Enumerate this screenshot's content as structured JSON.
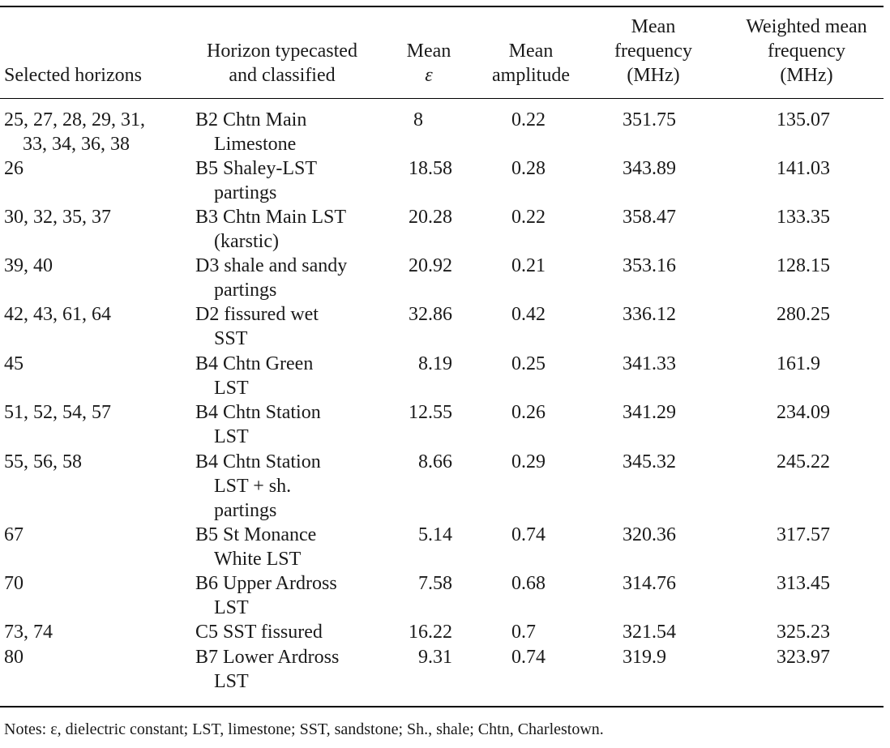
{
  "headers": {
    "selected": [
      "Selected horizons"
    ],
    "horizon": [
      "Horizon typecasted",
      "and classified"
    ],
    "eps": [
      "Mean",
      "ε"
    ],
    "amplitude": [
      "Mean",
      "amplitude"
    ],
    "mean_freq": [
      "Mean",
      "frequency",
      "(MHz)"
    ],
    "weighted_freq": [
      "Weighted mean",
      "frequency",
      "(MHz)"
    ]
  },
  "rows": [
    {
      "selected": [
        "25, 27, 28, 29, 31,",
        "33, 34, 36, 38"
      ],
      "horizon": [
        "B2 Chtn Main",
        "Limestone"
      ],
      "eps": "8",
      "amplitude": "0.22",
      "mean_freq": "351.75",
      "weighted_freq": "135.07"
    },
    {
      "selected": [
        "26"
      ],
      "horizon": [
        "B5 Shaley-LST",
        "partings"
      ],
      "eps": "18.58",
      "amplitude": "0.28",
      "mean_freq": "343.89",
      "weighted_freq": "141.03"
    },
    {
      "selected": [
        "30, 32, 35, 37"
      ],
      "horizon": [
        "B3 Chtn Main LST",
        "(karstic)"
      ],
      "eps": "20.28",
      "amplitude": "0.22",
      "mean_freq": "358.47",
      "weighted_freq": "133.35"
    },
    {
      "selected": [
        "39, 40"
      ],
      "horizon": [
        "D3 shale and sandy",
        "partings"
      ],
      "eps": "20.92",
      "amplitude": "0.21",
      "mean_freq": "353.16",
      "weighted_freq": "128.15"
    },
    {
      "selected": [
        "42, 43, 61, 64"
      ],
      "horizon": [
        "D2 fissured wet",
        "SST"
      ],
      "eps": "32.86",
      "amplitude": "0.42",
      "mean_freq": "336.12",
      "weighted_freq": "280.25"
    },
    {
      "selected": [
        "45"
      ],
      "horizon": [
        "B4 Chtn Green",
        "LST"
      ],
      "eps": "8.19",
      "amplitude": "0.25",
      "mean_freq": "341.33",
      "weighted_freq": "161.9"
    },
    {
      "selected": [
        "51, 52, 54, 57"
      ],
      "horizon": [
        "B4 Chtn Station",
        "LST"
      ],
      "eps": "12.55",
      "amplitude": "0.26",
      "mean_freq": "341.29",
      "weighted_freq": "234.09"
    },
    {
      "selected": [
        "55, 56, 58"
      ],
      "horizon": [
        "B4 Chtn Station",
        "LST + sh.",
        "partings"
      ],
      "eps": "8.66",
      "amplitude": "0.29",
      "mean_freq": "345.32",
      "weighted_freq": "245.22"
    },
    {
      "selected": [
        "67"
      ],
      "horizon": [
        "B5 St Monance",
        "White LST"
      ],
      "eps": "5.14",
      "amplitude": "0.74",
      "mean_freq": "320.36",
      "weighted_freq": "317.57"
    },
    {
      "selected": [
        "70"
      ],
      "horizon": [
        "B6 Upper Ardross",
        "LST"
      ],
      "eps": "7.58",
      "amplitude": "0.68",
      "mean_freq": "314.76",
      "weighted_freq": "313.45"
    },
    {
      "selected": [
        "73, 74"
      ],
      "horizon": [
        "C5 SST fissured"
      ],
      "eps": "16.22",
      "amplitude": "0.7",
      "mean_freq": "321.54",
      "weighted_freq": "325.23"
    },
    {
      "selected": [
        "80"
      ],
      "horizon": [
        "B7 Lower Ardross",
        "LST"
      ],
      "eps": "9.31",
      "amplitude": "0.74",
      "mean_freq": "319.9",
      "weighted_freq": "323.97"
    }
  ],
  "notes": "Notes: ε, dielectric constant; LST, limestone; SST, sandstone; Sh., shale; Chtn, Charlestown."
}
